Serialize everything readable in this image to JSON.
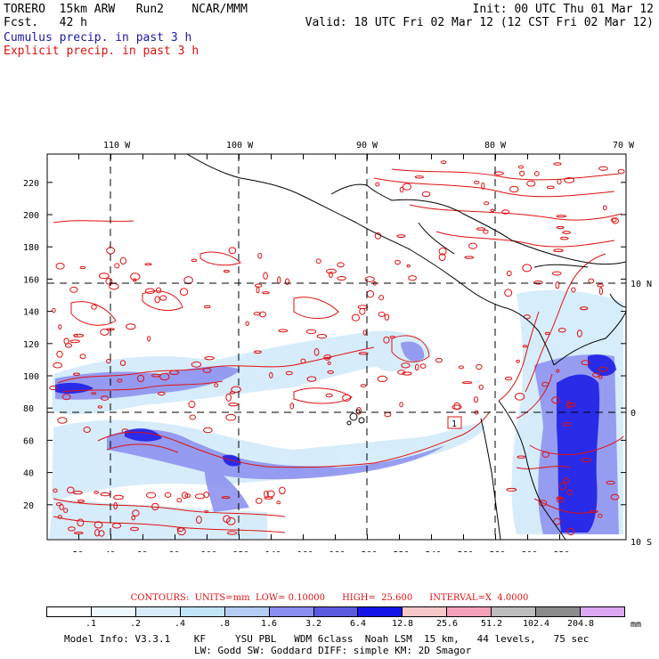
{
  "header": {
    "left1": "TORERO  15km ARW   Run2    NCAR/MMM",
    "left2": "Fcst.   42 h",
    "right1": "Init: 00 UTC Thu 01 Mar 12",
    "right2": "Valid: 18 UTC Fri 02 Mar 12 (12 CST Fri 02 Mar 12)",
    "cumulus": "Cumulus precip. in past 3 h",
    "explicit": "Explicit precip. in past 3 h"
  },
  "map": {
    "lon_labels": [
      "110 W",
      "100 W",
      "90 W",
      "80 W",
      "70 W"
    ],
    "lat_labels": [
      "10 N",
      "0",
      "10 S"
    ],
    "y_ticks": [
      "220",
      "200",
      "180",
      "160",
      "140",
      "120",
      "100",
      "80",
      "60",
      "40",
      "20"
    ],
    "x_ticks": [
      "20",
      "40",
      "60",
      "80",
      "100",
      "120",
      "140",
      "160",
      "180",
      "200",
      "220",
      "240",
      "260",
      "280",
      "300",
      "320"
    ],
    "box_label": "1",
    "colors": {
      "contour": "#e01010",
      "coast": "#000000"
    }
  },
  "colorbar": {
    "contours_line": "CONTOURS:  UNITS=mm  LOW= 0.10000      HIGH=  25.600      INTERVAL=X  4.0000",
    "labels": [
      ".1",
      ".2",
      ".4",
      ".8",
      "1.6",
      "3.2",
      "6.4",
      "12.8",
      "25.6",
      "51.2",
      "102.4",
      "204.8"
    ],
    "unit": "mm",
    "colors": [
      "#ffffff",
      "#eef8ff",
      "#d8ecfc",
      "#c2e4f8",
      "#b4ccf4",
      "#8c8ef0",
      "#5a5ae0",
      "#1414e8",
      "#f8c8c8",
      "#f4a0b8",
      "#bcbcbc",
      "#8c8c8c",
      "#dca8f4"
    ]
  },
  "footer": {
    "line1": "Model Info: V3.3.1    KF     YSU PBL   WDM 6class  Noah LSM  15 km,   44 levels,   75 sec",
    "line2": "LW: Godd SW: Goddard DIFF: simple KM: 2D Smagor"
  }
}
